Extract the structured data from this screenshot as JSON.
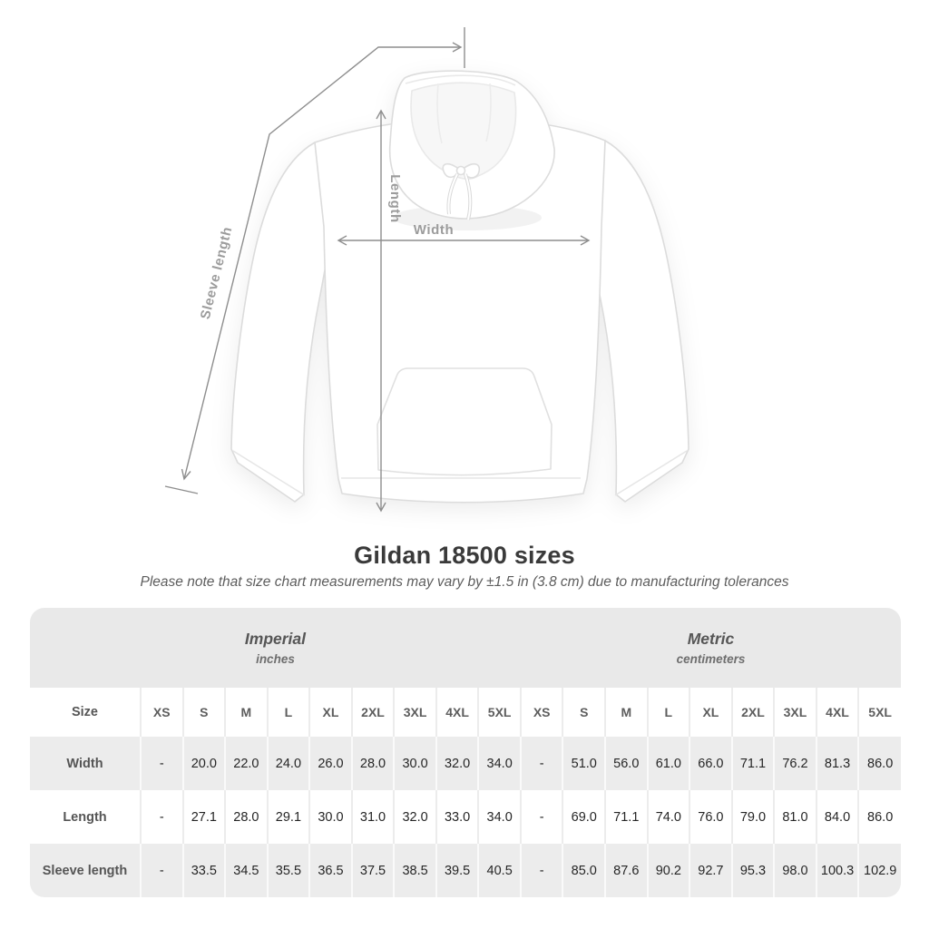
{
  "title": "Gildan 18500 sizes",
  "subtitle": "Please note that size chart measurements may vary by ±1.5 in (3.8 cm) due to manufacturing tolerances",
  "diagram": {
    "sleeve_length_label": "Sleeve length",
    "length_label": "Length",
    "width_label": "Width"
  },
  "colors": {
    "arrow_gray": "#8e8e8e",
    "label_gray": "#9c9c9c",
    "band_bg": "#e9e9e9",
    "row_gray_bg": "#ececec",
    "value_text": "#262626",
    "header_text": "#565656"
  },
  "chart_data": {
    "type": "table",
    "title": "Gildan 18500 sizes",
    "subtitle": "Please note that size chart measurements may vary by ±1.5 in (3.8 cm) due to manufacturing tolerances",
    "row_header": "Size",
    "groups": [
      {
        "label": "Imperial",
        "unit": "inches"
      },
      {
        "label": "Metric",
        "unit": "centimeters"
      }
    ],
    "sizes": [
      "XS",
      "S",
      "M",
      "L",
      "XL",
      "2XL",
      "3XL",
      "4XL",
      "5XL"
    ],
    "rows": [
      {
        "label": "Width",
        "imperial": [
          "-",
          "20.0",
          "22.0",
          "24.0",
          "26.0",
          "28.0",
          "30.0",
          "32.0",
          "34.0"
        ],
        "metric": [
          "-",
          "51.0",
          "56.0",
          "61.0",
          "66.0",
          "71.1",
          "76.2",
          "81.3",
          "86.0"
        ]
      },
      {
        "label": "Length",
        "imperial": [
          "-",
          "27.1",
          "28.0",
          "29.1",
          "30.0",
          "31.0",
          "32.0",
          "33.0",
          "34.0"
        ],
        "metric": [
          "-",
          "69.0",
          "71.1",
          "74.0",
          "76.0",
          "79.0",
          "81.0",
          "84.0",
          "86.0"
        ]
      },
      {
        "label": "Sleeve length",
        "imperial": [
          "-",
          "33.5",
          "34.5",
          "35.5",
          "36.5",
          "37.5",
          "38.5",
          "39.5",
          "40.5"
        ],
        "metric": [
          "-",
          "85.0",
          "87.6",
          "90.2",
          "92.7",
          "95.3",
          "98.0",
          "100.3",
          "102.9"
        ]
      }
    ]
  }
}
